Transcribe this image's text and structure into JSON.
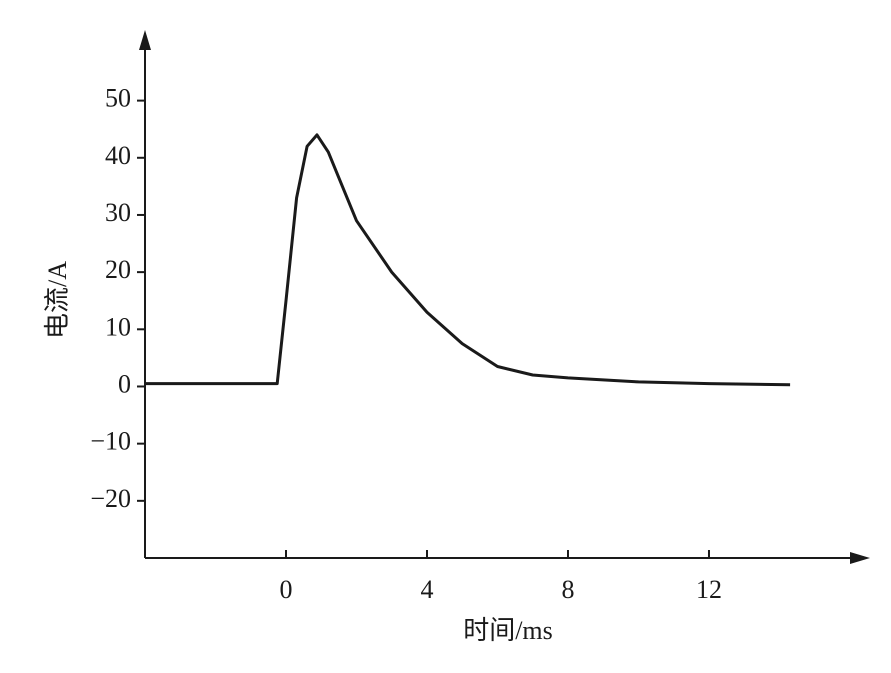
{
  "chart_data": {
    "type": "line",
    "x_label": "时间/ms",
    "y_label": "电流/A",
    "x": [
      -4,
      -0.25,
      0,
      0.3,
      0.6,
      0.88,
      1.2,
      1.6,
      2,
      3,
      4,
      5,
      6,
      7,
      8,
      10,
      12,
      14.3
    ],
    "values": [
      0.5,
      0.5,
      15,
      33,
      42,
      44,
      41,
      35,
      29,
      20,
      13,
      7.5,
      3.5,
      2,
      1.5,
      0.8,
      0.5,
      0.3
    ],
    "color": "#1a1a1a",
    "xlim": [
      -4,
      16.5
    ],
    "ylim": [
      -30,
      62
    ],
    "xticks": [
      0,
      4,
      8,
      12
    ],
    "yticks": [
      50,
      40,
      30,
      20,
      10,
      0,
      {
        "value": -10,
        "label": "−10"
      },
      {
        "value": -20,
        "label": "−20"
      }
    ]
  }
}
